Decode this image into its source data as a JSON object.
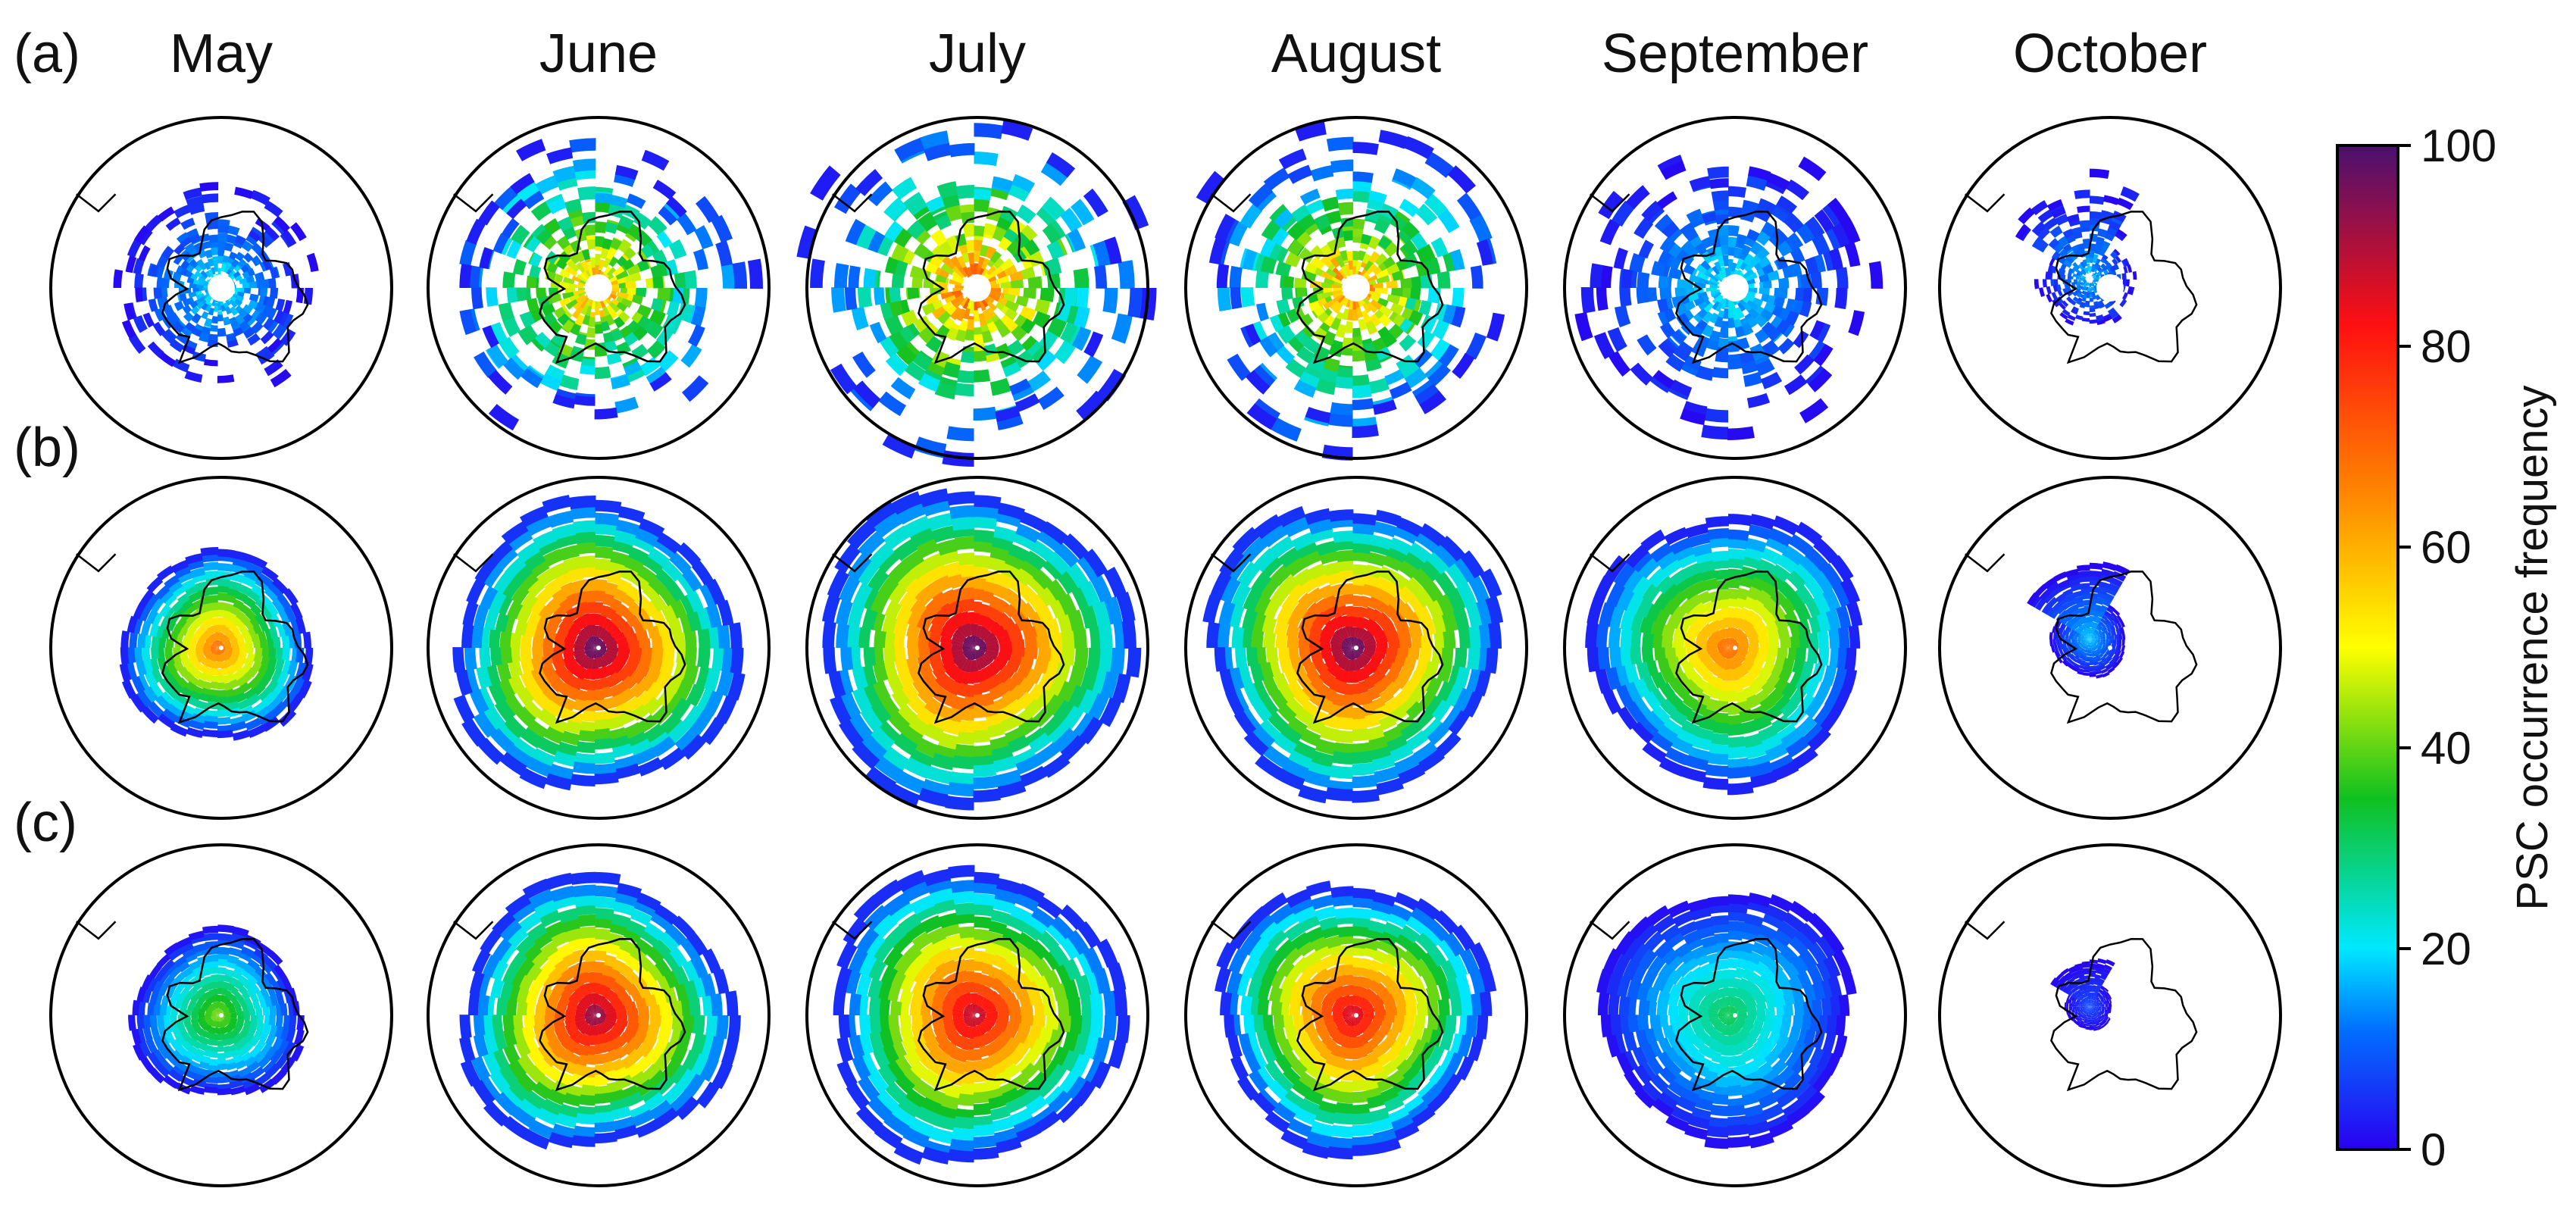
{
  "chart_data": {
    "type": "heatmap",
    "projection": "south-polar-stereographic",
    "title": "",
    "months": [
      "May",
      "June",
      "July",
      "August",
      "September",
      "October"
    ],
    "rows": [
      {
        "label": "(a)",
        "style": "observed-sparse",
        "peak": [
          22,
          62,
          70,
          65,
          22,
          18
        ],
        "extent": [
          0.56,
          0.82,
          0.93,
          0.86,
          0.8,
          0.52
        ],
        "hole": true
      },
      {
        "label": "(b)",
        "style": "smooth",
        "peak": [
          70,
          100,
          100,
          100,
          70,
          18
        ],
        "extent": [
          0.56,
          0.84,
          0.92,
          0.86,
          0.8,
          0.4
        ],
        "hole": false
      },
      {
        "label": "(c)",
        "style": "smooth",
        "peak": [
          42,
          95,
          90,
          88,
          32,
          8
        ],
        "extent": [
          0.5,
          0.8,
          0.86,
          0.8,
          0.74,
          0.25
        ],
        "hole": false
      }
    ],
    "colorbar": {
      "label": "PSC occurrence frequency",
      "min": 0,
      "max": 100,
      "ticks": [
        "0",
        "20",
        "40",
        "60",
        "80",
        "100"
      ],
      "colormap": "rainbow",
      "colors": [
        "#2a00f0",
        "#0070ff",
        "#00e8ff",
        "#10c020",
        "#ffff00",
        "#ff8800",
        "#ff1010",
        "#4a1070"
      ]
    }
  }
}
